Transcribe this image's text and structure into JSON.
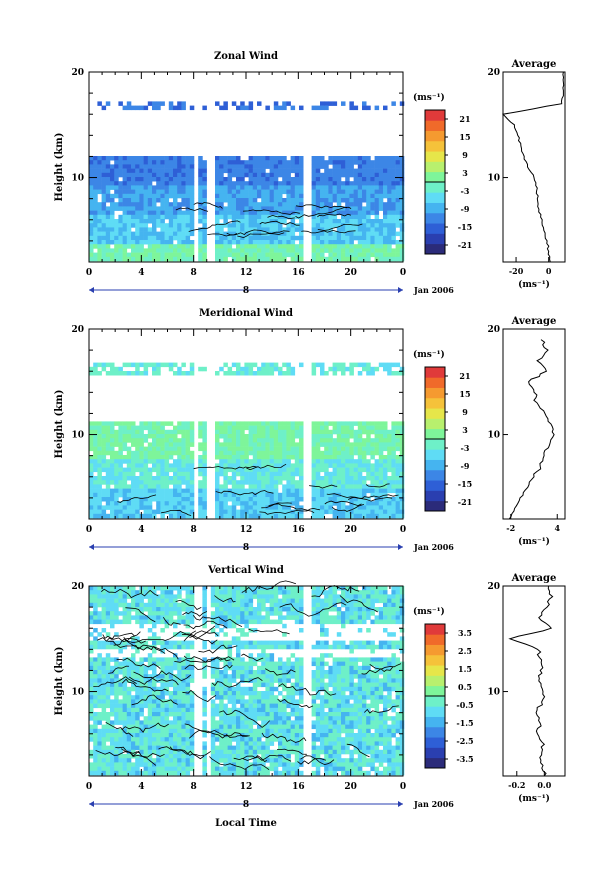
{
  "colors": {
    "scale": [
      "#2b2b7a",
      "#2a3fb0",
      "#2e5fd6",
      "#3c86e6",
      "#45b4f0",
      "#5fdcf5",
      "#6ef0c8",
      "#7ef59a",
      "#b8f06e",
      "#e6e64a",
      "#f5c23a",
      "#f59a30",
      "#f06a2a",
      "#e03a3a"
    ]
  },
  "chart_data": [
    {
      "type": "heatmap",
      "title": "Zonal Wind",
      "ylabel": "Height (km)",
      "ylim": [
        2,
        20
      ],
      "yticks": [
        "20",
        "10"
      ],
      "xticks": [
        "0",
        "4",
        "8",
        "12",
        "16",
        "20",
        "0"
      ],
      "xlim": [
        0,
        24
      ],
      "date_mark": "8",
      "date_label": "Jan 2006",
      "colorbar": {
        "unit": "(ms⁻¹)",
        "ticks": [
          "21",
          "15",
          "9",
          "3",
          "-3",
          "-9",
          "-15",
          "-21"
        ],
        "range": [
          -24,
          24
        ]
      },
      "gaps": [
        [
          7.8,
          8.3
        ],
        [
          8.8,
          9.4
        ],
        [
          16.3,
          16.8
        ]
      ],
      "profile": {
        "title": "Average",
        "xlabel": "(ms⁻¹)",
        "xticks": [
          "-20",
          "0"
        ],
        "xlim": [
          -28,
          10
        ],
        "yticks": [
          "20",
          "10"
        ],
        "heights": [
          2.0,
          3.0,
          4.0,
          5.0,
          6.0,
          7.0,
          8.0,
          9.0,
          10.0,
          11.0,
          12.0,
          13.0,
          14.0,
          15.0,
          16.0,
          17.0,
          18.0,
          19.0,
          20.0
        ],
        "values": [
          1,
          0,
          -1,
          -3,
          -4,
          -6,
          -7,
          -7,
          -9,
          -13,
          -15,
          -17,
          -19,
          -21,
          -28,
          8,
          9,
          9,
          9
        ]
      }
    },
    {
      "type": "heatmap",
      "title": "Meridional Wind",
      "ylabel": "Height (km)",
      "ylim": [
        2,
        20
      ],
      "yticks": [
        "20",
        "10"
      ],
      "xticks": [
        "0",
        "4",
        "8",
        "12",
        "16",
        "20",
        "0"
      ],
      "xlim": [
        0,
        24
      ],
      "date_mark": "8",
      "date_label": "Jan 2006",
      "colorbar": {
        "unit": "(ms⁻¹)",
        "ticks": [
          "21",
          "15",
          "9",
          "3",
          "-3",
          "-9",
          "-15",
          "-21"
        ],
        "range": [
          -24,
          24
        ]
      },
      "gaps": [
        [
          7.8,
          8.3
        ],
        [
          8.8,
          9.4
        ],
        [
          16.3,
          16.8
        ]
      ],
      "profile": {
        "title": "Average",
        "xlabel": "(ms⁻¹)",
        "xticks": [
          "-2",
          "4"
        ],
        "xlim": [
          -3,
          5
        ],
        "yticks": [
          "20",
          "10"
        ],
        "heights": [
          2.0,
          3.0,
          4.0,
          5.0,
          6.0,
          7.0,
          8.0,
          9.0,
          10.0,
          11.0,
          12.0,
          13.0,
          14.0,
          15.0,
          16.0,
          17.0,
          18.0,
          19.0
        ],
        "values": [
          -2.2,
          -1.5,
          -0.8,
          0.2,
          1.0,
          1.8,
          2.3,
          3.0,
          3.6,
          3.2,
          2.4,
          1.4,
          1.0,
          0.3,
          2.6,
          1.4,
          2.8,
          1.9
        ]
      }
    },
    {
      "type": "heatmap",
      "title": "Vertical Wind",
      "ylabel": "Height (km)",
      "ylim": [
        2,
        20
      ],
      "yticks": [
        "20",
        "10"
      ],
      "xticks": [
        "0",
        "4",
        "8",
        "12",
        "16",
        "20",
        "0"
      ],
      "xlim": [
        0,
        24
      ],
      "date_mark": "8",
      "date_label": "Jan 2006",
      "xlabel": "Local Time",
      "colorbar": {
        "unit": "(ms⁻¹)",
        "ticks": [
          "3.5",
          "2.5",
          "1.5",
          "0.5",
          "-0.5",
          "-1.5",
          "-2.5",
          "-3.5"
        ],
        "range": [
          -4,
          4
        ]
      },
      "gaps": [
        [
          7.9,
          8.4
        ],
        [
          8.8,
          9.2
        ],
        [
          16.3,
          16.7
        ]
      ],
      "profile": {
        "title": "Average",
        "xlabel": "(ms⁻¹)",
        "xticks": [
          "-0.2",
          "0.0"
        ],
        "xlim": [
          -0.3,
          0.15
        ],
        "yticks": [
          "20",
          "10"
        ],
        "heights": [
          2.0,
          3.0,
          4.0,
          5.0,
          6.0,
          7.0,
          8.0,
          9.0,
          10.0,
          11.0,
          12.0,
          13.0,
          14.0,
          15.0,
          16.0,
          17.0,
          18.0,
          19.0,
          20.0
        ],
        "values": [
          0.0,
          -0.01,
          -0.02,
          0.0,
          -0.05,
          -0.03,
          -0.06,
          -0.02,
          -0.01,
          -0.04,
          -0.03,
          -0.02,
          -0.05,
          -0.25,
          0.05,
          -0.04,
          0.02,
          0.06,
          0.03
        ]
      }
    }
  ]
}
